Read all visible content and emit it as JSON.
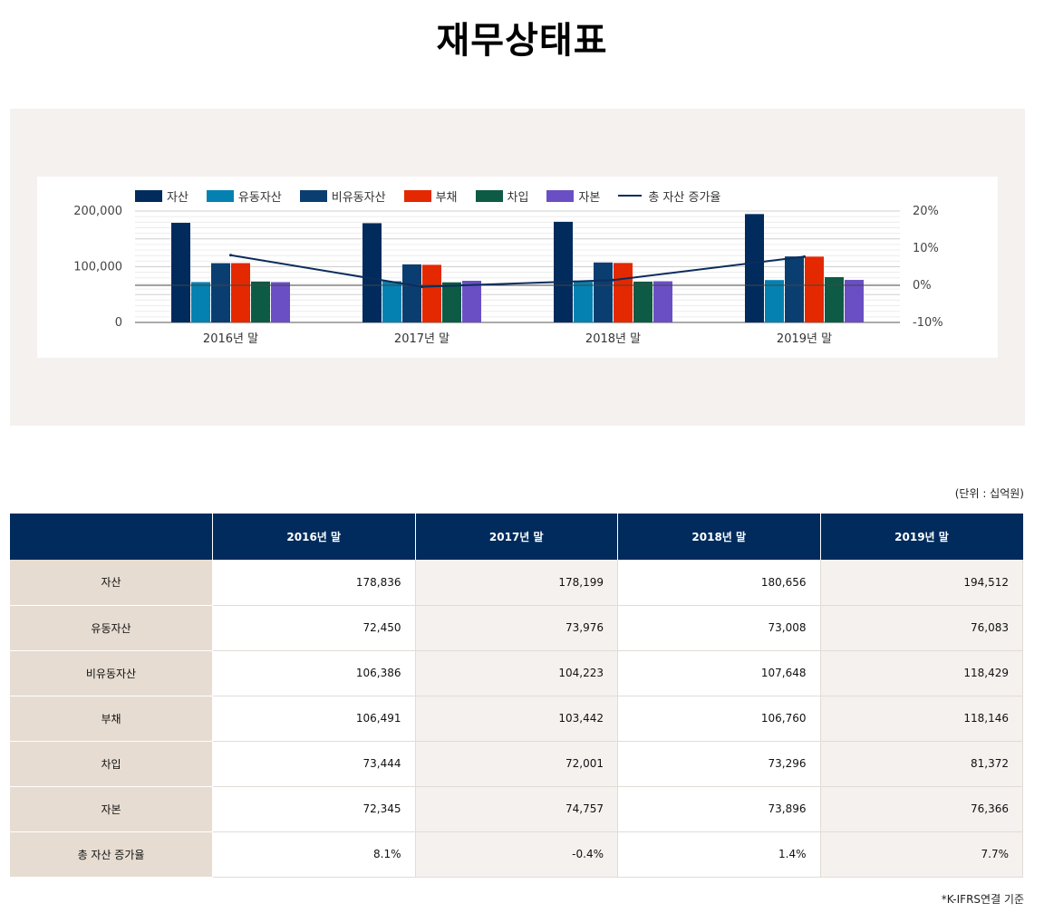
{
  "page": {
    "title": "재무상태표",
    "unit_note": "(단위 : 십억원)",
    "footnote": "*K-IFRS연결 기준"
  },
  "colors": {
    "asset": "#002b5c",
    "current_asset": "#0581b1",
    "noncurrent_asset": "#0b3e70",
    "liability": "#e42800",
    "borrowing": "#0d5b45",
    "equity": "#6a4fc4",
    "growth": "#0b2d5c",
    "header_bg": "#002b5c",
    "row_head_bg": "#e6dcd1",
    "panel_bg": "#f5f1ef"
  },
  "chart_data": {
    "type": "bar",
    "categories": [
      "2016년 말",
      "2017년 말",
      "2018년 말",
      "2019년 말"
    ],
    "series": [
      {
        "name": "자산",
        "values": [
          178836,
          178199,
          180656,
          194512
        ],
        "color_key": "asset"
      },
      {
        "name": "유동자산",
        "values": [
          72450,
          73976,
          73008,
          76083
        ],
        "color_key": "current_asset"
      },
      {
        "name": "비유동자산",
        "values": [
          106386,
          104223,
          107648,
          118429
        ],
        "color_key": "noncurrent_asset"
      },
      {
        "name": "부채",
        "values": [
          106491,
          103442,
          106760,
          118146
        ],
        "color_key": "liability"
      },
      {
        "name": "차입",
        "values": [
          73444,
          72001,
          73296,
          81372
        ],
        "color_key": "borrowing"
      },
      {
        "name": "자본",
        "values": [
          72345,
          74757,
          73896,
          76366
        ],
        "color_key": "equity"
      }
    ],
    "line_series": {
      "name": "총 자산 증가율",
      "values": [
        8.1,
        -0.4,
        1.4,
        7.7
      ],
      "axis": "right",
      "color_key": "growth"
    },
    "y_left": {
      "ticks": [
        "0",
        "100,000",
        "200,000"
      ],
      "ylim": [
        0,
        200000
      ]
    },
    "y_right": {
      "ticks": [
        "-10%",
        "0%",
        "10%",
        "20%"
      ],
      "ylim": [
        -10,
        20
      ]
    },
    "grid": true,
    "legend_position": "top-left"
  },
  "table": {
    "header": [
      "",
      "2016년 말",
      "2017년 말",
      "2018년 말",
      "2019년 말"
    ],
    "rows": [
      {
        "label": "자산",
        "values": [
          "178,836",
          "178,199",
          "180,656",
          "194,512"
        ]
      },
      {
        "label": "유동자산",
        "values": [
          "72,450",
          "73,976",
          "73,008",
          "76,083"
        ]
      },
      {
        "label": "비유동자산",
        "values": [
          "106,386",
          "104,223",
          "107,648",
          "118,429"
        ]
      },
      {
        "label": "부채",
        "values": [
          "106,491",
          "103,442",
          "106,760",
          "118,146"
        ]
      },
      {
        "label": "차입",
        "values": [
          "73,444",
          "72,001",
          "73,296",
          "81,372"
        ]
      },
      {
        "label": "자본",
        "values": [
          "72,345",
          "74,757",
          "73,896",
          "76,366"
        ]
      },
      {
        "label": "총 자산 증가율",
        "values": [
          "8.1%",
          "-0.4%",
          "1.4%",
          "7.7%"
        ]
      }
    ]
  }
}
